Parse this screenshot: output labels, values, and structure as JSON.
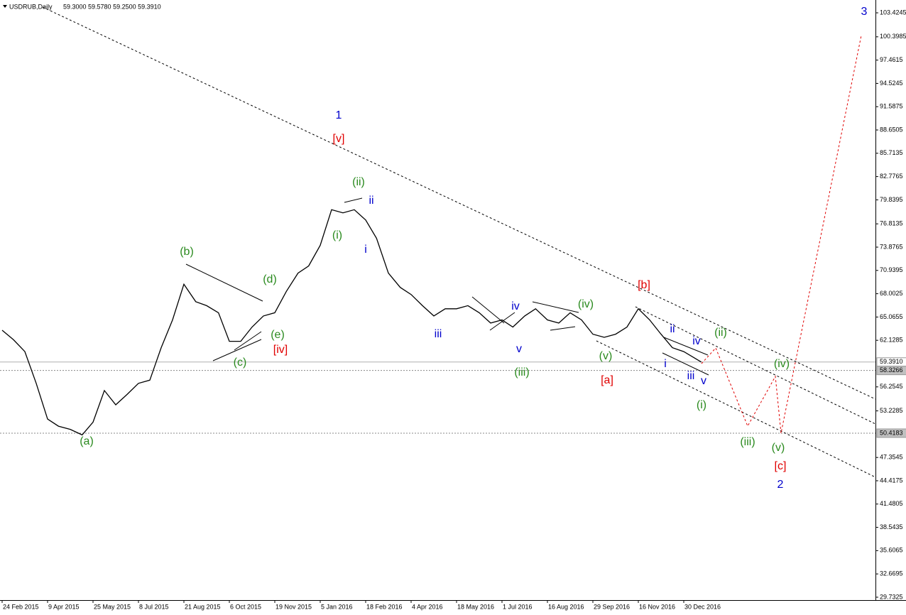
{
  "chart_data": {
    "type": "line",
    "title": "USDRUB,Daily",
    "ohlc": "59.3000 59.5780 59.2500 59.3910",
    "color": "#000000",
    "x": [
      "2015-02-24",
      "2015-03-07",
      "2015-03-18",
      "2015-03-29",
      "2015-04-09",
      "2015-04-20",
      "2015-05-02",
      "2015-05-14",
      "2015-05-25",
      "2015-06-05",
      "2015-06-16",
      "2015-06-27",
      "2015-07-08",
      "2015-07-19",
      "2015-07-30",
      "2015-08-10",
      "2015-08-21",
      "2015-09-02",
      "2015-09-13",
      "2015-09-25",
      "2015-10-06",
      "2015-10-17",
      "2015-10-28",
      "2015-11-08",
      "2015-11-19",
      "2015-12-01",
      "2015-12-13",
      "2015-12-24",
      "2016-01-05",
      "2016-01-16",
      "2016-01-27",
      "2016-02-07",
      "2016-02-18",
      "2016-02-29",
      "2016-03-12",
      "2016-03-24",
      "2016-04-04",
      "2016-04-15",
      "2016-04-26",
      "2016-05-07",
      "2016-05-18",
      "2016-05-29",
      "2016-06-09",
      "2016-06-20",
      "2016-07-01",
      "2016-07-12",
      "2016-07-24",
      "2016-08-04",
      "2016-08-16",
      "2016-08-27",
      "2016-09-07",
      "2016-09-18",
      "2016-09-29",
      "2016-10-11",
      "2016-10-23",
      "2016-11-04",
      "2016-11-16",
      "2016-11-27",
      "2016-12-08",
      "2016-12-19",
      "2016-12-30",
      "2017-01-16"
    ],
    "values": [
      63.4,
      62.2,
      60.7,
      56.7,
      52.2,
      51.3,
      50.9,
      50.2,
      51.8,
      55.8,
      54.0,
      55.3,
      56.7,
      57.1,
      61.2,
      64.7,
      69.2,
      67.0,
      66.5,
      65.6,
      62.0,
      62.0,
      63.8,
      65.2,
      65.6,
      68.3,
      70.6,
      71.5,
      74.1,
      78.6,
      78.2,
      78.6,
      77.3,
      75.0,
      70.6,
      68.8,
      67.9,
      66.5,
      65.2,
      66.1,
      66.1,
      66.5,
      65.6,
      64.3,
      64.7,
      63.8,
      65.2,
      66.1,
      64.7,
      64.3,
      65.6,
      64.7,
      62.9,
      62.5,
      62.9,
      63.8,
      66.1,
      64.7,
      62.9,
      61.2,
      60.7,
      59.391
    ],
    "ylim": [
      29.37,
      105.04
    ],
    "yticks": [
      103.4245,
      100.3985,
      97.4615,
      94.5245,
      91.5875,
      88.6505,
      85.7135,
      82.7765,
      79.8395,
      76.8135,
      73.8765,
      70.9395,
      68.0025,
      65.0655,
      62.1285,
      56.2545,
      53.2285,
      47.3545,
      44.4175,
      41.4805,
      38.5435,
      35.6065,
      32.6695,
      29.7325
    ],
    "price_lines": [
      {
        "value": 59.391,
        "label": "59.3910"
      },
      {
        "value": 58.3266,
        "label": "58.3266"
      },
      {
        "value": 50.4183,
        "label": "50.4183"
      }
    ],
    "xticks": [
      {
        "value": "2015-02-24",
        "label": "24 Feb 2015"
      },
      {
        "value": "2015-04-09",
        "label": "9 Apr 2015"
      },
      {
        "value": "2015-05-25",
        "label": "25 May 2015"
      },
      {
        "value": "2015-07-08",
        "label": "8 Jul 2015"
      },
      {
        "value": "2015-08-21",
        "label": "21 Aug 2015"
      },
      {
        "value": "2015-10-06",
        "label": "6 Oct 2015"
      },
      {
        "value": "2015-11-19",
        "label": "19 Nov 2015"
      },
      {
        "value": "2016-01-05",
        "label": "5 Jan 2016"
      },
      {
        "value": "2016-02-18",
        "label": "18 Feb 2016"
      },
      {
        "value": "2016-04-04",
        "label": "4 Apr 2016"
      },
      {
        "value": "2016-05-18",
        "label": "18 May 2016"
      },
      {
        "value": "2016-07-01",
        "label": "1 Jul 2016"
      },
      {
        "value": "2016-08-16",
        "label": "16 Aug 2016"
      },
      {
        "value": "2016-09-29",
        "label": "29 Sep 2016"
      },
      {
        "value": "2016-11-16",
        "label": "16 Nov 2016"
      },
      {
        "value": "2016-12-30",
        "label": "30 Dec 2016"
      }
    ],
    "annotations": [
      {
        "text": "3",
        "color": "#0000cc"
      },
      {
        "text": "1",
        "color": "#0000cc"
      },
      {
        "text": "[v]",
        "color": "#e00000"
      },
      {
        "text": "(ii)",
        "color": "#2a8a1e"
      },
      {
        "text": "ii",
        "color": "#0000cc"
      },
      {
        "text": "(i)",
        "color": "#2a8a1e"
      },
      {
        "text": "i",
        "color": "#0000cc"
      },
      {
        "text": "(b)",
        "color": "#2a8a1e"
      },
      {
        "text": "(d)",
        "color": "#2a8a1e"
      },
      {
        "text": "(e)",
        "color": "#2a8a1e"
      },
      {
        "text": "[iv]",
        "color": "#e00000"
      },
      {
        "text": "(c)",
        "color": "#2a8a1e"
      },
      {
        "text": "(a)",
        "color": "#2a8a1e"
      },
      {
        "text": "iii",
        "color": "#0000cc"
      },
      {
        "text": "iv",
        "color": "#0000cc"
      },
      {
        "text": "v",
        "color": "#0000cc"
      },
      {
        "text": "(iii)",
        "color": "#2a8a1e"
      },
      {
        "text": "(iv)",
        "color": "#2a8a1e"
      },
      {
        "text": "(v)",
        "color": "#2a8a1e"
      },
      {
        "text": "[a]",
        "color": "#e00000"
      },
      {
        "text": "[b]",
        "color": "#e00000"
      },
      {
        "text": "ii",
        "color": "#0000cc"
      },
      {
        "text": "iv",
        "color": "#0000cc"
      },
      {
        "text": "i",
        "color": "#0000cc"
      },
      {
        "text": "iii",
        "color": "#0000cc"
      },
      {
        "text": "v",
        "color": "#0000cc"
      },
      {
        "text": "(ii)",
        "color": "#2a8a1e"
      },
      {
        "text": "(i)",
        "color": "#2a8a1e"
      },
      {
        "text": "(iii)",
        "color": "#2a8a1e"
      },
      {
        "text": "(iv)",
        "color": "#2a8a1e"
      },
      {
        "text": "(v)",
        "color": "#2a8a1e"
      },
      {
        "text": "[c]",
        "color": "#e00000"
      },
      {
        "text": "2",
        "color": "#0000cc"
      }
    ]
  }
}
